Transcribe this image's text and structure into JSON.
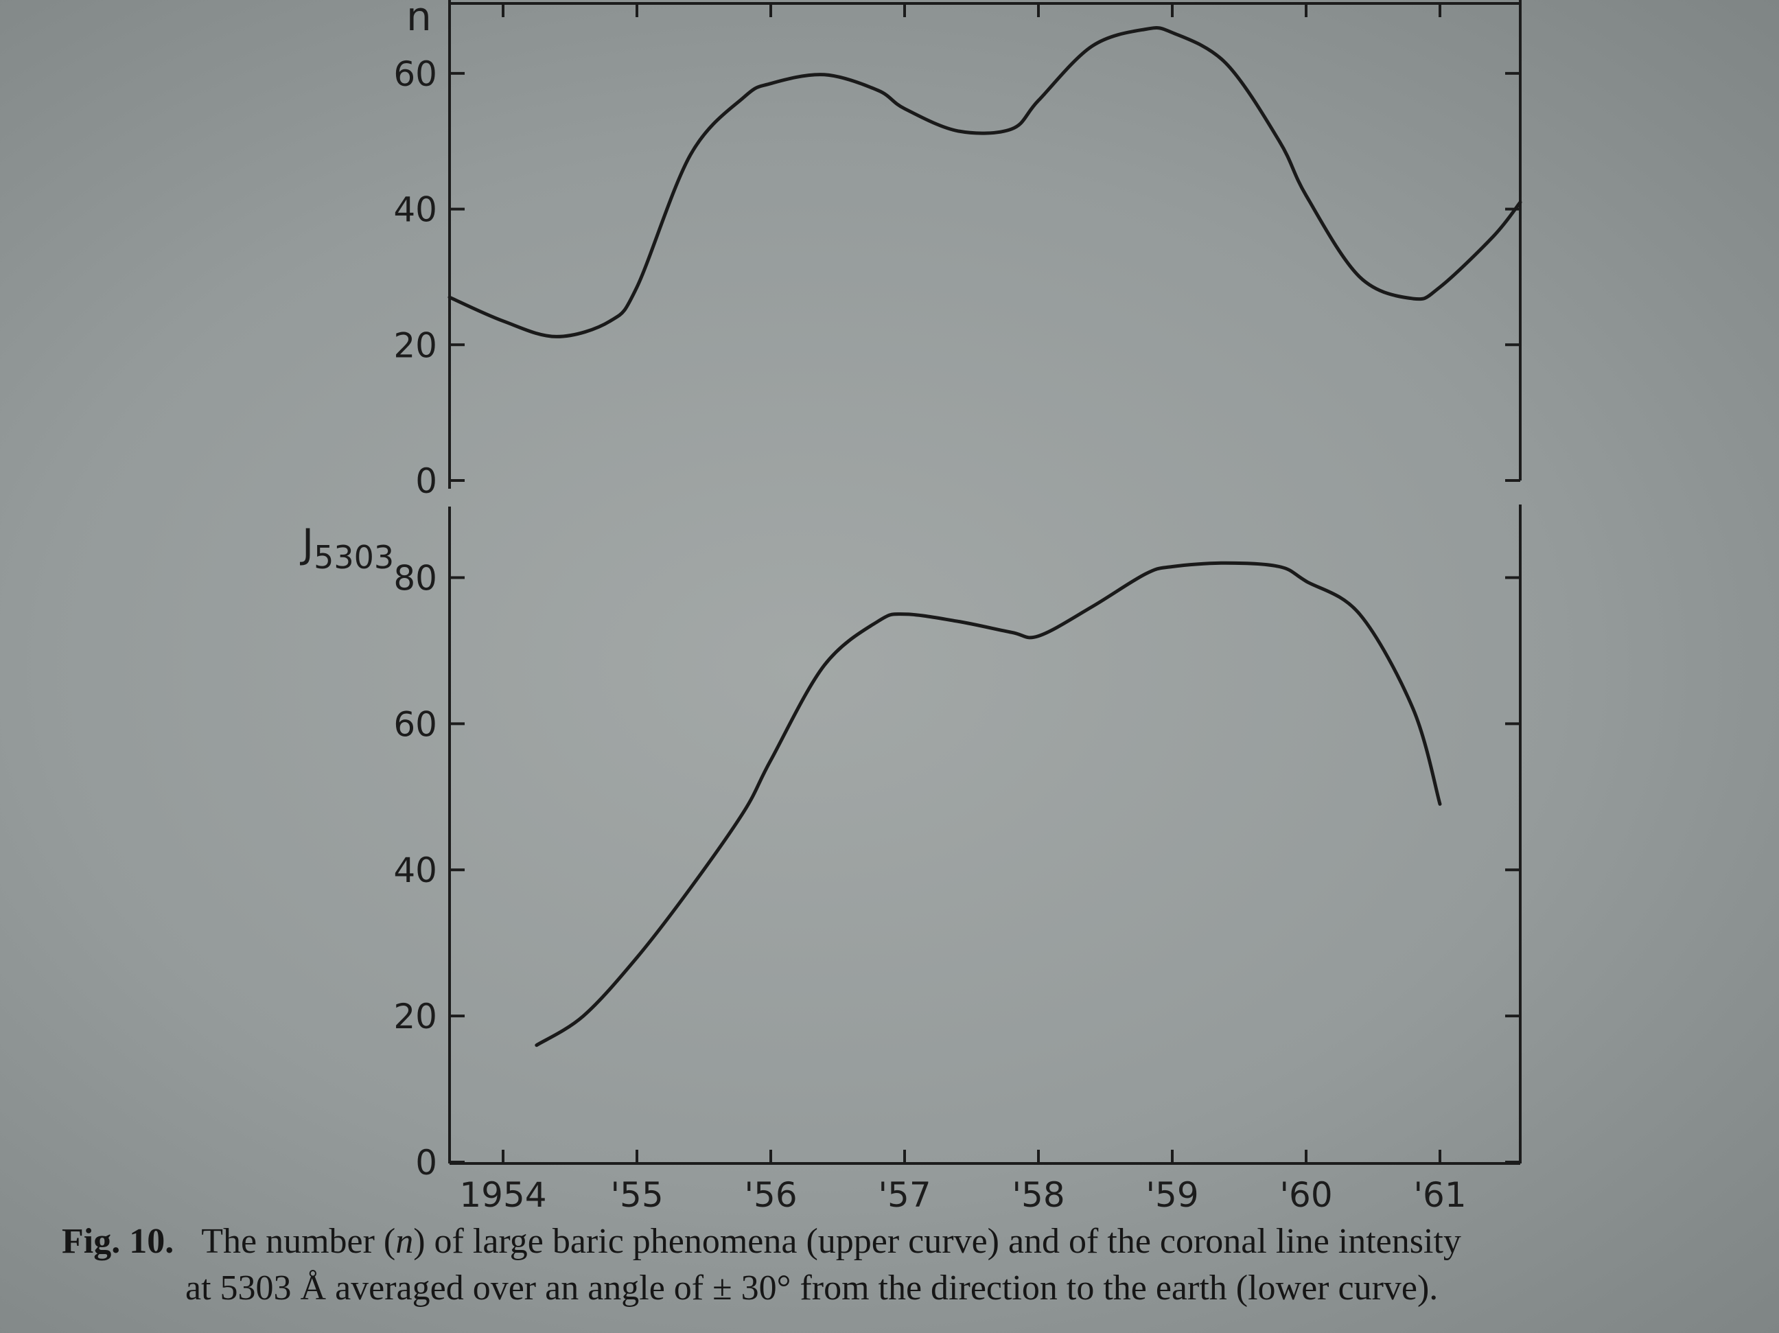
{
  "chart_data": [
    {
      "type": "line",
      "panel": "upper",
      "ylabel": "n",
      "ylim": [
        0,
        70
      ],
      "yticks": [
        0,
        20,
        40,
        60
      ],
      "xlim": [
        1953.6,
        1961.6
      ],
      "x": [
        1953.6,
        1954.0,
        1954.4,
        1954.8,
        1955.0,
        1955.4,
        1955.8,
        1956.0,
        1956.4,
        1956.8,
        1957.0,
        1957.4,
        1957.8,
        1958.0,
        1958.4,
        1958.8,
        1959.0,
        1959.4,
        1959.8,
        1960.0,
        1960.4,
        1960.8,
        1961.0,
        1961.4,
        1961.6
      ],
      "values": [
        27,
        23.5,
        21.2,
        23.5,
        28.5,
        48,
        56.5,
        58.5,
        59.8,
        57.5,
        54.8,
        51.5,
        51.8,
        56,
        64,
        66.5,
        66,
        61.5,
        50,
        42,
        30,
        26.8,
        28.5,
        36,
        41
      ],
      "series_desc": "upper curve"
    },
    {
      "type": "line",
      "panel": "lower",
      "ylabel": "J",
      "ylabel_sub": "5303",
      "ylim": [
        0,
        90
      ],
      "yticks": [
        0,
        20,
        40,
        60,
        80
      ],
      "xlim": [
        1953.6,
        1961.6
      ],
      "x": [
        1954.25,
        1954.6,
        1955.0,
        1955.4,
        1955.8,
        1956.0,
        1956.4,
        1956.8,
        1957.0,
        1957.4,
        1957.8,
        1958.0,
        1958.4,
        1958.8,
        1959.0,
        1959.4,
        1959.8,
        1960.0,
        1960.4,
        1960.8,
        1961.0
      ],
      "values": [
        16,
        20,
        28,
        37.5,
        48,
        55,
        68,
        74,
        75,
        74,
        72.5,
        72,
        76,
        80.5,
        81.5,
        82,
        81.5,
        79.5,
        75,
        62,
        49
      ],
      "series_desc": "lower curve"
    }
  ],
  "x_axis": {
    "ticks": [
      1954,
      1955,
      1956,
      1957,
      1958,
      1959,
      1960,
      1961
    ],
    "tick_labels": [
      "1954",
      "'55",
      "'56",
      "'57",
      "'58",
      "'59",
      "'60",
      "'61"
    ]
  },
  "caption": {
    "fig_label": "Fig. 10.",
    "line1_a": "The number (",
    "line1_n": "n",
    "line1_b": ") of large baric phenomena (upper curve) and of the coronal line intensity",
    "line2": "at 5303 Å averaged over an angle of ± 30° from the direction to the earth (lower curve)."
  },
  "colors": {
    "ink": "#1c1c1c",
    "background": "#9ba09f"
  }
}
